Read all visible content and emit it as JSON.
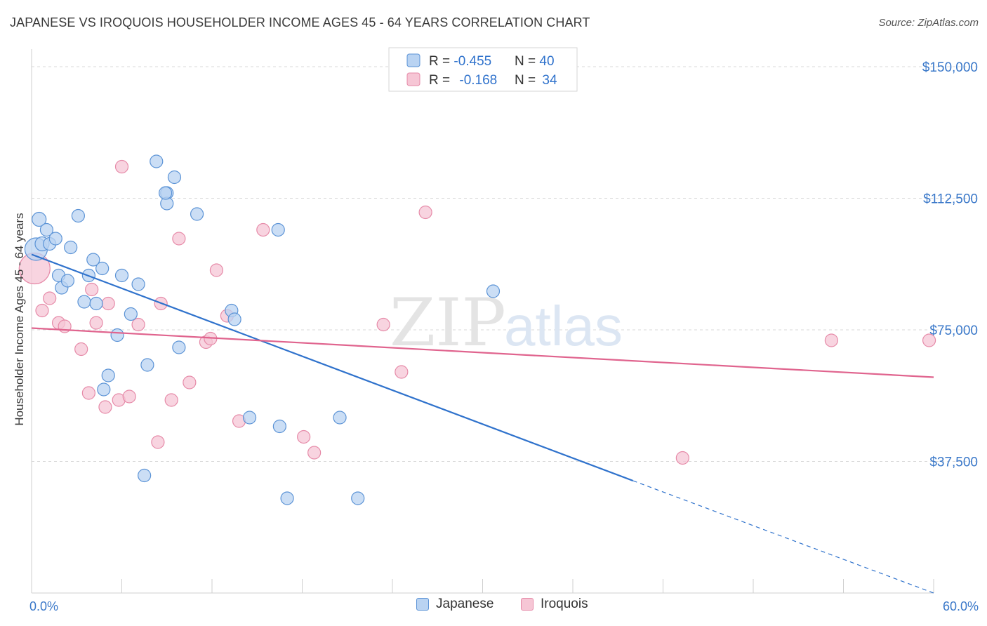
{
  "title": "JAPANESE VS IROQUOIS HOUSEHOLDER INCOME AGES 45 - 64 YEARS CORRELATION CHART",
  "source": "Source: ZipAtlas.com",
  "watermark": {
    "zip": "ZIP",
    "atlas": "atlas"
  },
  "colors": {
    "japanese_fill": "#b9d3f2",
    "japanese_stroke": "#5b93d6",
    "japanese_line": "#2f72cc",
    "iroquois_fill": "#f6c6d5",
    "iroquois_stroke": "#e68aa8",
    "iroquois_line": "#e0648e",
    "axis_label": "#3a78c9",
    "grid": "#d8d8d8"
  },
  "legend_top": [
    {
      "r_label": "R = ",
      "r_value": "-0.455",
      "n_label": "N = ",
      "n_value": "40"
    },
    {
      "r_label": "R = ",
      "r_value": "-0.168",
      "n_label": "N = ",
      "n_value": "34"
    }
  ],
  "legend_bottom": [
    "Japanese",
    "Iroquois"
  ],
  "chart_data": {
    "type": "scatter",
    "title": "JAPANESE VS IROQUOIS HOUSEHOLDER INCOME AGES 45 - 64 YEARS CORRELATION CHART",
    "xlabel": "",
    "ylabel": "Householder Income Ages 45 - 64 years",
    "xlim": [
      0,
      60
    ],
    "ylim": [
      0,
      155000
    ],
    "x_tick_labels": [
      "0.0%",
      "60.0%"
    ],
    "y_ticks": [
      37500,
      75000,
      112500,
      150000
    ],
    "y_tick_labels": [
      "$37,500",
      "$75,000",
      "$112,500",
      "$150,000"
    ],
    "grid": true,
    "legend_placement": "top-center",
    "series": [
      {
        "name": "Japanese",
        "r": -0.455,
        "n": 40,
        "trend": {
          "x0": 0,
          "y0": 96500,
          "x1": 40,
          "y1": 32000,
          "dash_x1": 60,
          "dash_y1": 0
        },
        "points": [
          [
            0.3,
            98000,
            16
          ],
          [
            0.5,
            106500,
            10
          ],
          [
            0.7,
            99500,
            10
          ],
          [
            1.0,
            103500,
            9
          ],
          [
            1.2,
            99500,
            9
          ],
          [
            1.6,
            101000,
            9
          ],
          [
            1.8,
            90500,
            9
          ],
          [
            2.0,
            87000,
            9
          ],
          [
            2.4,
            89000,
            9
          ],
          [
            2.6,
            98500,
            9
          ],
          [
            3.1,
            107500,
            9
          ],
          [
            3.5,
            83000,
            9
          ],
          [
            3.8,
            90500,
            9
          ],
          [
            4.1,
            95000,
            9
          ],
          [
            4.3,
            82500,
            9
          ],
          [
            4.7,
            92500,
            9
          ],
          [
            4.8,
            58000,
            9
          ],
          [
            5.1,
            62000,
            9
          ],
          [
            5.7,
            73500,
            9
          ],
          [
            6.0,
            90500,
            9
          ],
          [
            6.6,
            79500,
            9
          ],
          [
            7.1,
            88000,
            9
          ],
          [
            7.5,
            33500,
            9
          ],
          [
            7.7,
            65000,
            9
          ],
          [
            8.3,
            123000,
            9
          ],
          [
            9.0,
            114000,
            9
          ],
          [
            9.0,
            111000,
            9
          ],
          [
            9.5,
            118500,
            9
          ],
          [
            9.8,
            70000,
            9
          ],
          [
            11.0,
            108000,
            9
          ],
          [
            13.3,
            80500,
            9
          ],
          [
            13.5,
            78000,
            9
          ],
          [
            14.5,
            50000,
            9
          ],
          [
            16.4,
            103500,
            9
          ],
          [
            16.5,
            47500,
            9
          ],
          [
            17.0,
            27000,
            9
          ],
          [
            20.5,
            50000,
            9
          ],
          [
            21.7,
            27000,
            9
          ],
          [
            30.7,
            86000,
            9
          ],
          [
            8.9,
            114000,
            9
          ]
        ]
      },
      {
        "name": "Iroquois",
        "r": -0.168,
        "n": 34,
        "trend": {
          "x0": 0,
          "y0": 75500,
          "x1": 60,
          "y1": 61500
        },
        "points": [
          [
            0.2,
            92500,
            22
          ],
          [
            0.7,
            80500,
            9
          ],
          [
            1.2,
            84000,
            9
          ],
          [
            1.8,
            77000,
            9
          ],
          [
            2.2,
            76000,
            9
          ],
          [
            3.3,
            69500,
            9
          ],
          [
            3.8,
            57000,
            9
          ],
          [
            4.0,
            86500,
            9
          ],
          [
            4.3,
            77000,
            9
          ],
          [
            4.9,
            53000,
            9
          ],
          [
            5.1,
            82500,
            9
          ],
          [
            5.8,
            55000,
            9
          ],
          [
            6.0,
            121500,
            9
          ],
          [
            6.5,
            56000,
            9
          ],
          [
            7.1,
            76500,
            9
          ],
          [
            8.4,
            43000,
            9
          ],
          [
            8.6,
            82500,
            9
          ],
          [
            9.3,
            55000,
            9
          ],
          [
            9.8,
            101000,
            9
          ],
          [
            10.5,
            60000,
            9
          ],
          [
            11.6,
            71500,
            9
          ],
          [
            11.9,
            72500,
            9
          ],
          [
            12.3,
            92000,
            9
          ],
          [
            13.0,
            79000,
            9
          ],
          [
            13.8,
            49000,
            9
          ],
          [
            15.4,
            103500,
            9
          ],
          [
            18.1,
            44500,
            9
          ],
          [
            18.8,
            40000,
            9
          ],
          [
            23.4,
            76500,
            9
          ],
          [
            24.6,
            63000,
            9
          ],
          [
            26.2,
            108500,
            9
          ],
          [
            43.3,
            38500,
            9
          ],
          [
            53.2,
            72000,
            9
          ],
          [
            59.7,
            72000,
            9
          ]
        ]
      }
    ]
  }
}
